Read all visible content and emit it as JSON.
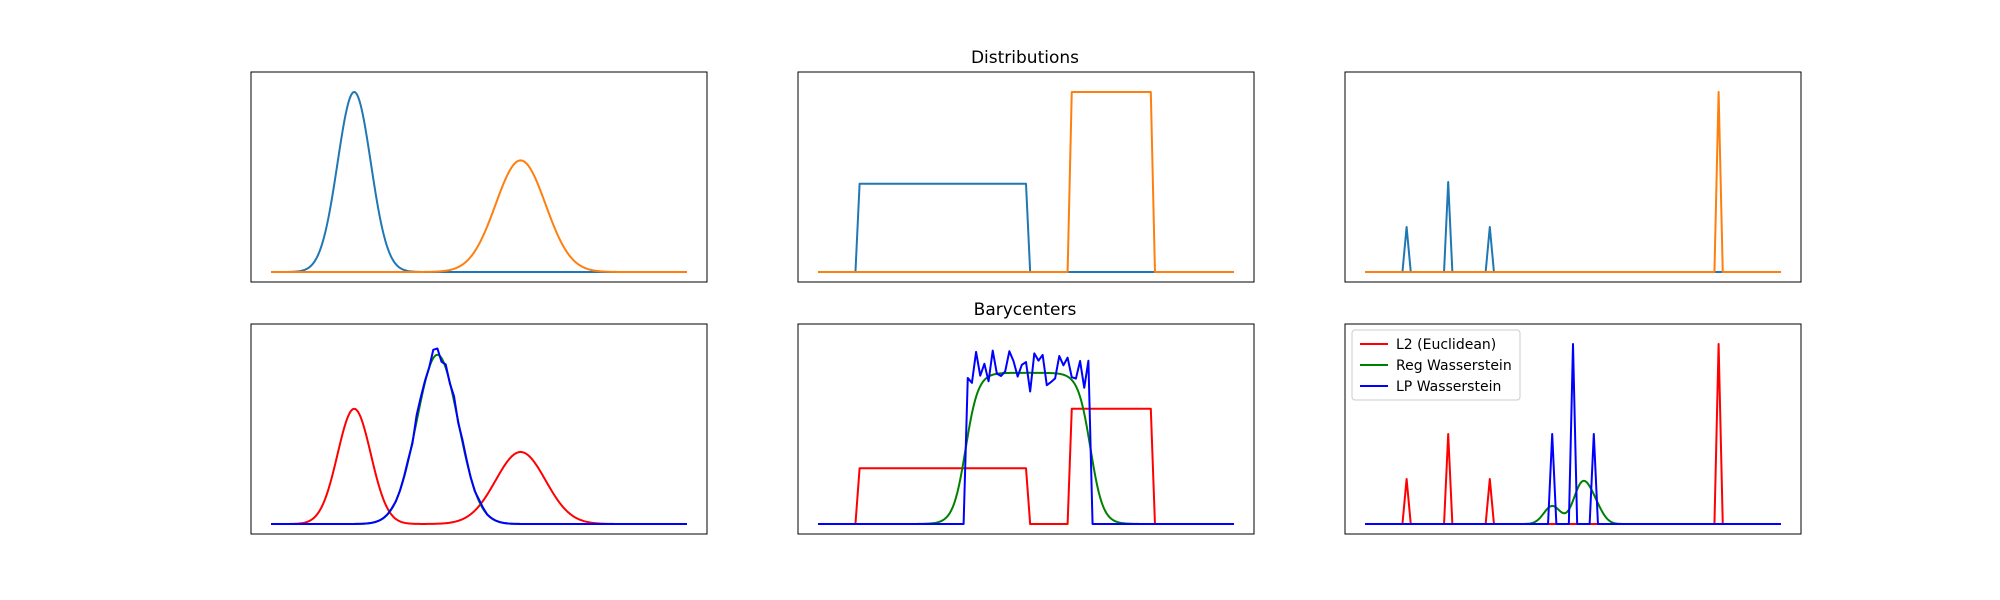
{
  "figure": {
    "row_titles": [
      "Distributions",
      "Barycenters"
    ]
  },
  "colors": {
    "C0": "#1f77b4",
    "C1": "#ff7f0e",
    "red": "#ff0000",
    "green": "#008000",
    "blue": "#0000ff",
    "axes_edge": "#000000"
  },
  "chart_data": [
    {
      "type": "line",
      "panel": "row1-col1",
      "title": "",
      "xlim": [
        0,
        100
      ],
      "ylim": [
        0,
        1.1
      ],
      "grid": false,
      "series": [
        {
          "color": "C0",
          "kind": "gaussian",
          "params": {
            "mu": 20,
            "sigma": 4,
            "amp": 1.0
          }
        },
        {
          "color": "C1",
          "kind": "gaussian",
          "params": {
            "mu": 60,
            "sigma": 6,
            "amp": 0.62
          }
        }
      ]
    },
    {
      "type": "line",
      "panel": "row1-col2",
      "title": "Distributions",
      "xlim": [
        0,
        100
      ],
      "ylim": [
        0,
        1.1
      ],
      "grid": false,
      "series": [
        {
          "color": "C0",
          "kind": "uniform",
          "params": {
            "start": 10,
            "end": 50,
            "height": 0.49
          }
        },
        {
          "color": "C1",
          "kind": "uniform",
          "params": {
            "start": 61,
            "end": 80,
            "height": 1.0
          }
        }
      ]
    },
    {
      "type": "line",
      "panel": "row1-col3",
      "title": "",
      "xlim": [
        0,
        100
      ],
      "ylim": [
        0,
        1.1
      ],
      "grid": false,
      "series": [
        {
          "color": "C0",
          "kind": "diracs",
          "params": {
            "points": [
              [
                10,
                0.25
              ],
              [
                20,
                0.5
              ],
              [
                30,
                0.25
              ]
            ]
          }
        },
        {
          "color": "C1",
          "kind": "diracs",
          "params": {
            "points": [
              [
                85,
                1.0
              ]
            ]
          }
        }
      ]
    },
    {
      "type": "line",
      "panel": "row2-col1",
      "title": "",
      "xlim": [
        0,
        100
      ],
      "ylim": [
        0,
        1.1
      ],
      "grid": false,
      "series": [
        {
          "color": "red",
          "kind": "mixture",
          "params": {
            "components": [
              [
                20,
                4,
                0.64
              ],
              [
                60,
                6,
                0.4
              ]
            ]
          }
        },
        {
          "color": "green",
          "kind": "gaussian",
          "params": {
            "mu": 40,
            "sigma": 5,
            "amp": 0.94
          }
        },
        {
          "color": "blue",
          "kind": "noisy-gaussian",
          "params": {
            "mu": 40,
            "sigma": 5,
            "amp": 0.96,
            "noise": 0.05
          }
        }
      ]
    },
    {
      "type": "line",
      "panel": "row2-col2",
      "title": "Barycenters",
      "xlim": [
        0,
        100
      ],
      "ylim": [
        0,
        1.1
      ],
      "grid": false,
      "series": [
        {
          "color": "red",
          "kind": "mixture-uniform",
          "params": {
            "parts": [
              [
                10,
                50,
                0.31
              ],
              [
                61,
                80,
                0.64
              ]
            ]
          }
        },
        {
          "color": "green",
          "kind": "smooth-uniform",
          "params": {
            "start": 35.5,
            "end": 65.5,
            "height": 0.84,
            "edge": 1.5
          }
        },
        {
          "color": "blue",
          "kind": "noisy-uniform",
          "params": {
            "start": 35.5,
            "end": 65.5,
            "height": 0.84,
            "noise": 0.12
          }
        }
      ]
    },
    {
      "type": "line",
      "panel": "row2-col3",
      "title": "",
      "xlim": [
        0,
        100
      ],
      "ylim": [
        0,
        1.1
      ],
      "grid": false,
      "legend": {
        "placement": "upper-left",
        "entries": [
          {
            "label": "L2 (Euclidean)",
            "color": "red"
          },
          {
            "label": "Reg Wasserstein",
            "color": "green"
          },
          {
            "label": "LP Wasserstein",
            "color": "blue"
          }
        ]
      },
      "series": [
        {
          "color": "red",
          "kind": "diracs",
          "params": {
            "points": [
              [
                10,
                0.25
              ],
              [
                20,
                0.5
              ],
              [
                30,
                0.25
              ],
              [
                85,
                1.0
              ]
            ]
          }
        },
        {
          "color": "green",
          "kind": "mixture",
          "params": {
            "components": [
              [
                45,
                2,
                0.1
              ],
              [
                52,
                2,
                0.2
              ],
              [
                55,
                2,
                0.1
              ]
            ]
          }
        },
        {
          "color": "blue",
          "kind": "diracs",
          "params": {
            "points": [
              [
                45,
                0.5
              ],
              [
                50,
                1.0
              ],
              [
                55,
                0.5
              ]
            ]
          }
        }
      ]
    }
  ]
}
